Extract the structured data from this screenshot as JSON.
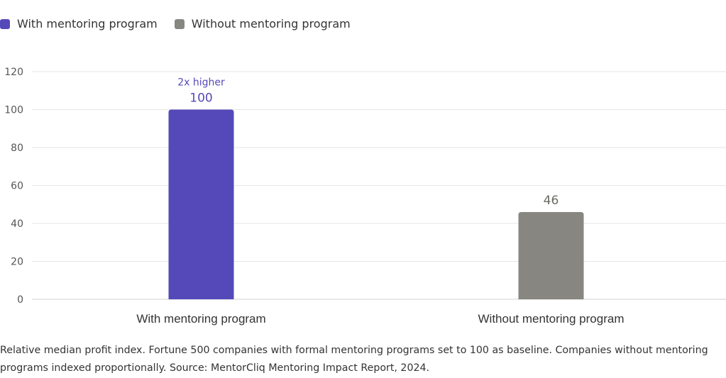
{
  "chart_data": {
    "type": "bar",
    "categories": [
      "With mentoring program",
      "Without mentoring program"
    ],
    "values": [
      100,
      46
    ],
    "colors": [
      "#5549b9",
      "#878680"
    ],
    "legend": [
      {
        "label": "With mentoring program",
        "color": "#5549b9"
      },
      {
        "label": "Without mentoring program",
        "color": "#878680"
      }
    ],
    "annotation": {
      "category": "With mentoring program",
      "text": "2x higher",
      "color": "#5549b9"
    },
    "yticks": [
      0,
      20,
      40,
      60,
      80,
      100,
      120
    ],
    "ylim": [
      0,
      120
    ],
    "title": "",
    "xlabel": "",
    "ylabel": "",
    "grid": true,
    "legend_position": "top-left"
  },
  "caption": "Relative median profit index. Fortune 500 companies with formal mentoring programs set to 100 as baseline. Companies without mentoring programs indexed proportionally. Source: MentorCliq Mentoring Impact Report, 2024."
}
